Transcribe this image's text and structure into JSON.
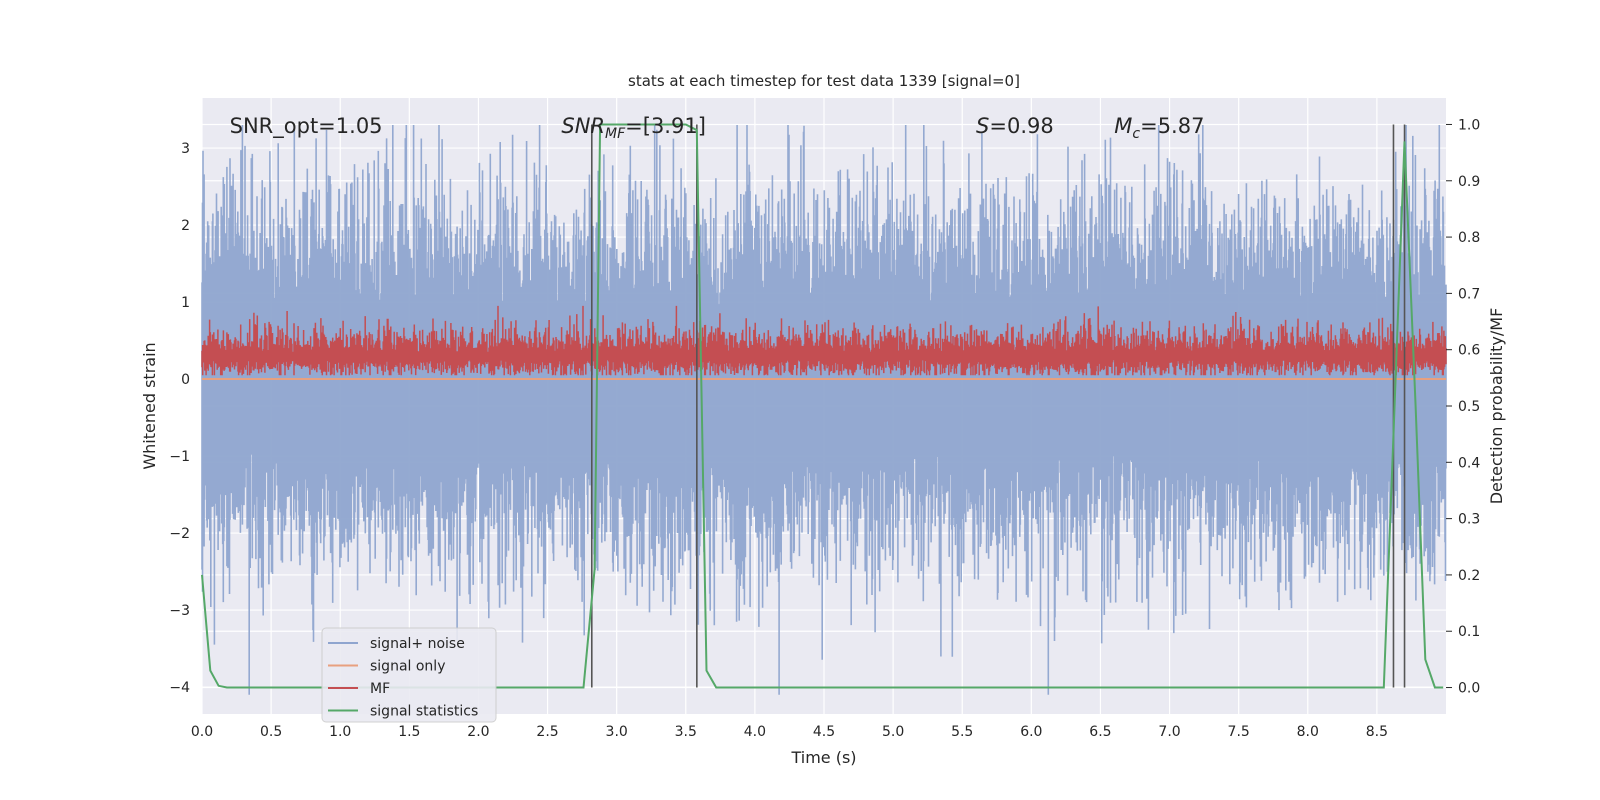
{
  "chart_data": {
    "type": "line",
    "title": "stats at each timestep for test data 1339 [signal=0]",
    "xlabel": "Time (s)",
    "ylabel_left": "Whitened strain",
    "ylabel_right": "Detection probability/MF",
    "xlim": [
      0.0,
      9.0
    ],
    "ylim_left": [
      -4.35,
      3.65
    ],
    "ylim_right": [
      -0.047,
      1.047
    ],
    "x_ticks": [
      "0.0",
      "0.5",
      "1.0",
      "1.5",
      "2.0",
      "2.5",
      "3.0",
      "3.5",
      "4.0",
      "4.5",
      "5.0",
      "5.5",
      "6.0",
      "6.5",
      "7.0",
      "7.5",
      "8.0",
      "8.5"
    ],
    "y_ticks_left": [
      "−4",
      "−3",
      "−2",
      "−1",
      "0",
      "1",
      "2",
      "3"
    ],
    "y_ticks_right": [
      "0.0",
      "0.1",
      "0.2",
      "0.3",
      "0.4",
      "0.5",
      "0.6",
      "0.7",
      "0.8",
      "0.9",
      "1.0"
    ],
    "grid": true,
    "annotations": [
      {
        "id": "snr-opt",
        "text": "SNR_opt=1.05",
        "x": 0.2,
        "y": 3.3
      },
      {
        "id": "snr-mf",
        "text": "SNR_MF=[3.91]",
        "x": 2.6,
        "y": 3.3
      },
      {
        "id": "s-stat",
        "text": "S=0.98",
        "x": 5.6,
        "y": 3.3
      },
      {
        "id": "chirp-mass",
        "text": "M_c=5.87",
        "x": 6.6,
        "y": 3.3
      }
    ],
    "vertical_markers_x": [
      2.82,
      3.58,
      8.62,
      8.7
    ],
    "series": [
      {
        "name": "signal+ noise",
        "color": "#8fa5cf",
        "axis": "left",
        "kind": "noise",
        "amplitude_typical": 1.0,
        "amplitude_peak": 3.3
      },
      {
        "name": "signal only",
        "color": "#e8a07f",
        "axis": "left",
        "kind": "flat",
        "values_y": 0.0
      },
      {
        "name": "MF",
        "color": "#c44e52",
        "axis": "left",
        "kind": "band",
        "baseline": 0.3,
        "low": 0.05,
        "high": 0.95
      },
      {
        "name": "signal statistics",
        "color": "#55a868",
        "axis": "right",
        "x": [
          0.0,
          0.06,
          0.12,
          0.18,
          2.7,
          2.76,
          2.84,
          2.88,
          3.5,
          3.58,
          3.65,
          3.72,
          8.5,
          8.55,
          8.62,
          8.7,
          8.78,
          8.85,
          8.92,
          8.98
        ],
        "values": [
          0.2,
          0.03,
          0.003,
          0.0,
          0.0,
          0.0,
          0.21,
          1.0,
          1.0,
          0.99,
          0.03,
          0.0,
          0.0,
          0.0,
          0.45,
          0.97,
          0.5,
          0.05,
          0.0,
          0.0
        ]
      }
    ],
    "legend": {
      "placement": "lower-left",
      "entries": [
        "signal+ noise",
        "signal only",
        "MF",
        "signal statistics"
      ]
    }
  }
}
